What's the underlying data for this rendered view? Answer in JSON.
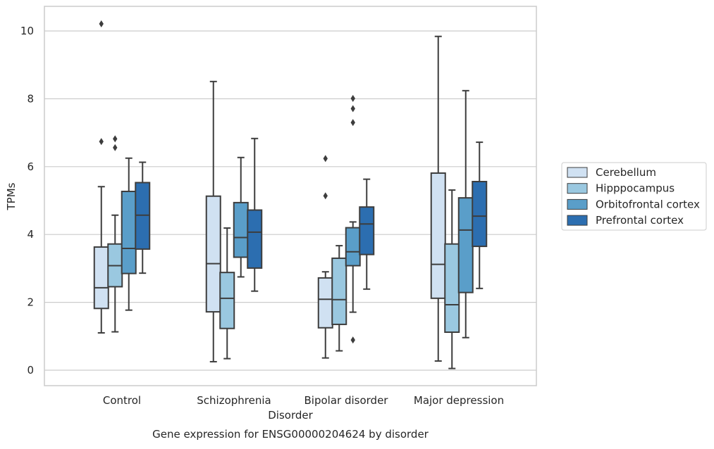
{
  "chart_data": {
    "type": "box",
    "title": "Gene expression for ENSG00000204624 by disorder",
    "xlabel": "Disorder",
    "ylabel": "TPMs",
    "categories": [
      "Control",
      "Schizophrenia",
      "Bipolar disorder",
      "Major depression"
    ],
    "ylim": [
      -0.4,
      10.7
    ],
    "yticks": [
      0,
      2,
      4,
      6,
      8,
      10
    ],
    "grid": true,
    "legend_position": "right",
    "series": [
      {
        "name": "Cerebellum",
        "color": "#d0e1f2",
        "boxes": [
          {
            "whislo": 1.1,
            "q1": 1.82,
            "med": 2.43,
            "q3": 3.63,
            "whishi": 5.41,
            "fliers": [
              6.74,
              10.21
            ]
          },
          {
            "whislo": 0.25,
            "q1": 1.72,
            "med": 3.14,
            "q3": 5.13,
            "whishi": 8.51,
            "fliers": []
          },
          {
            "whislo": 0.36,
            "q1": 1.25,
            "med": 2.09,
            "q3": 2.72,
            "whishi": 2.9,
            "fliers": [
              5.14,
              6.24
            ]
          },
          {
            "whislo": 0.27,
            "q1": 2.12,
            "med": 3.12,
            "q3": 5.81,
            "whishi": 9.84,
            "fliers": []
          }
        ]
      },
      {
        "name": "Hipppocampus",
        "color": "#9ac8e0",
        "boxes": [
          {
            "whislo": 1.13,
            "q1": 2.46,
            "med": 3.08,
            "q3": 3.72,
            "whishi": 4.57,
            "fliers": [
              6.56,
              6.82
            ]
          },
          {
            "whislo": 0.34,
            "q1": 1.23,
            "med": 2.12,
            "q3": 2.88,
            "whishi": 4.19,
            "fliers": []
          },
          {
            "whislo": 0.57,
            "q1": 1.35,
            "med": 2.08,
            "q3": 3.3,
            "whishi": 3.67,
            "fliers": []
          },
          {
            "whislo": 0.05,
            "q1": 1.12,
            "med": 1.93,
            "q3": 3.72,
            "whishi": 5.31,
            "fliers": []
          }
        ]
      },
      {
        "name": "Orbitofrontal cortex",
        "color": "#5a9ec9",
        "boxes": [
          {
            "whislo": 1.77,
            "q1": 2.85,
            "med": 3.59,
            "q3": 5.27,
            "whishi": 6.25,
            "fliers": []
          },
          {
            "whislo": 2.75,
            "q1": 3.33,
            "med": 3.91,
            "q3": 4.94,
            "whishi": 6.27,
            "fliers": []
          },
          {
            "whislo": 1.71,
            "q1": 3.08,
            "med": 3.49,
            "q3": 4.2,
            "whishi": 4.37,
            "fliers": [
              0.89,
              7.3,
              7.71,
              8.01
            ]
          },
          {
            "whislo": 0.96,
            "q1": 2.29,
            "med": 4.13,
            "q3": 5.08,
            "whishi": 8.24,
            "fliers": []
          }
        ]
      },
      {
        "name": "Prefrontal cortex",
        "color": "#2c6eb0",
        "boxes": [
          {
            "whislo": 2.86,
            "q1": 3.57,
            "med": 4.57,
            "q3": 5.53,
            "whishi": 6.13,
            "fliers": []
          },
          {
            "whislo": 2.33,
            "q1": 3.01,
            "med": 4.07,
            "q3": 4.72,
            "whishi": 6.83,
            "fliers": []
          },
          {
            "whislo": 2.39,
            "q1": 3.41,
            "med": 4.31,
            "q3": 4.81,
            "whishi": 5.63,
            "fliers": []
          },
          {
            "whislo": 2.41,
            "q1": 3.65,
            "med": 4.54,
            "q3": 5.56,
            "whishi": 6.72,
            "fliers": []
          }
        ]
      }
    ]
  }
}
